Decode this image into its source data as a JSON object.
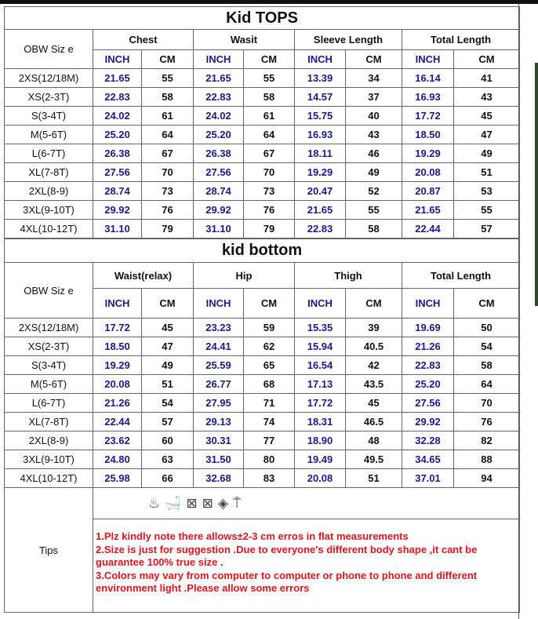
{
  "tops": {
    "title": "Kid TOPS",
    "size_header": "OBW  Siz e",
    "groups": [
      "Chest",
      "Wasit",
      "Sleeve Length",
      "Total Length"
    ],
    "units": {
      "inch": "INCH",
      "cm": "CM"
    },
    "rows": [
      [
        "2XS(12/18M)",
        "21.65",
        "55",
        "21.65",
        "55",
        "13.39",
        "34",
        "16.14",
        "41"
      ],
      [
        "XS(2-3T)",
        "22.83",
        "58",
        "22.83",
        "58",
        "14.57",
        "37",
        "16.93",
        "43"
      ],
      [
        "S(3-4T)",
        "24.02",
        "61",
        "24.02",
        "61",
        "15.75",
        "40",
        "17.72",
        "45"
      ],
      [
        "M(5-6T)",
        "25.20",
        "64",
        "25.20",
        "64",
        "16.93",
        "43",
        "18.50",
        "47"
      ],
      [
        "L(6-7T)",
        "26.38",
        "67",
        "26.38",
        "67",
        "18.11",
        "46",
        "19.29",
        "49"
      ],
      [
        "XL(7-8T)",
        "27.56",
        "70",
        "27.56",
        "70",
        "19.29",
        "49",
        "20.08",
        "51"
      ],
      [
        "2XL(8-9)",
        "28.74",
        "73",
        "28.74",
        "73",
        "20.47",
        "52",
        "20.87",
        "53"
      ],
      [
        "3XL(9-10T)",
        "29.92",
        "76",
        "29.92",
        "76",
        "21.65",
        "55",
        "21.65",
        "55"
      ],
      [
        "4XL(10-12T)",
        "31.10",
        "79",
        "31.10",
        "79",
        "22.83",
        "58",
        "22.44",
        "57"
      ]
    ]
  },
  "bottom": {
    "title": "kid bottom",
    "size_header": "OBW  Siz e",
    "groups": [
      "Waist(relax)",
      "Hip",
      "Thigh",
      "Total Length"
    ],
    "units": {
      "inch": "INCH",
      "cm": "CM"
    },
    "rows": [
      [
        "2XS(12/18M)",
        "17.72",
        "45",
        "23.23",
        "59",
        "15.35",
        "39",
        "19.69",
        "50"
      ],
      [
        "XS(2-3T)",
        "18.50",
        "47",
        "24.41",
        "62",
        "15.94",
        "40.5",
        "21.26",
        "54"
      ],
      [
        "S(3-4T)",
        "19.29",
        "49",
        "25.59",
        "65",
        "16.54",
        "42",
        "22.83",
        "58"
      ],
      [
        "M(5-6T)",
        "20.08",
        "51",
        "26.77",
        "68",
        "17.13",
        "43.5",
        "25.20",
        "64"
      ],
      [
        "L(6-7T)",
        "21.26",
        "54",
        "27.95",
        "71",
        "17.72",
        "45",
        "27.56",
        "70"
      ],
      [
        "XL(7-8T)",
        "22.44",
        "57",
        "29.13",
        "74",
        "18.31",
        "46.5",
        "29.92",
        "76"
      ],
      [
        "2XL(8-9)",
        "23.62",
        "60",
        "30.31",
        "77",
        "18.90",
        "48",
        "32.28",
        "82"
      ],
      [
        "3XL(9-10T)",
        "24.80",
        "63",
        "31.50",
        "80",
        "19.49",
        "49.5",
        "34.65",
        "88"
      ],
      [
        "4XL(10-12T)",
        "25.98",
        "66",
        "32.68",
        "83",
        "20.08",
        "51",
        "37.01",
        "94"
      ]
    ]
  },
  "care_icons": [
    "hand-wash-icon",
    "wash-tub-icon",
    "no-tumble-dry-icon",
    "no-dryer-icon",
    "no-bleach-icon",
    "hang-dry-icon"
  ],
  "care_glyphs": [
    "♨",
    "🛁",
    "⊠",
    "⊠",
    "◈",
    "⍑"
  ],
  "tips": {
    "label": "Tips",
    "lines": [
      "1.Plz kindly note there allows±2-3 cm erros in flat  measurements",
      "2.Size is just for suggestion .Due to everyone's different body shape ,it cant be guarantee 100% true size .",
      "3.Colors may  vary from computer to computer or phone to phone and different environment light .Please allow some errors"
    ],
    "color": "#e0141c"
  },
  "colors": {
    "inch": "#1a1a8c",
    "border": "#666666"
  }
}
